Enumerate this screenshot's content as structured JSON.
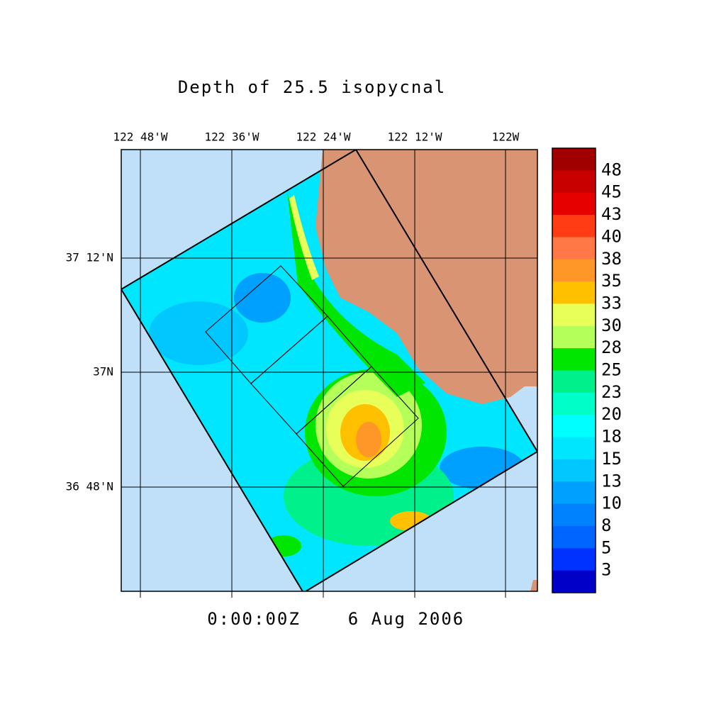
{
  "title": "Depth of 25.5 isopycnal",
  "lon_labels": [
    "122 48'W",
    "122 36'W",
    "122 24'W",
    "122 12'W",
    "122W"
  ],
  "lat_labels": [
    "37 12'N",
    "37N",
    "36 48'N"
  ],
  "time": "0:00:00Z",
  "date": "6 Aug 2006",
  "colorbar": {
    "labels": [
      48,
      45,
      43,
      40,
      38,
      35,
      33,
      30,
      28,
      25,
      23,
      20,
      18,
      15,
      13,
      10,
      8,
      5,
      3
    ],
    "colors": [
      "#a00000",
      "#c80000",
      "#e60000",
      "#ff3c14",
      "#ff7846",
      "#ff9628",
      "#ffc000",
      "#e8ff5a",
      "#b4ff5a",
      "#00e600",
      "#00f08c",
      "#00ffc8",
      "#00ffff",
      "#00e6ff",
      "#00c8ff",
      "#00a0ff",
      "#0082ff",
      "#0064ff",
      "#0032ff",
      "#0000c8"
    ]
  }
}
